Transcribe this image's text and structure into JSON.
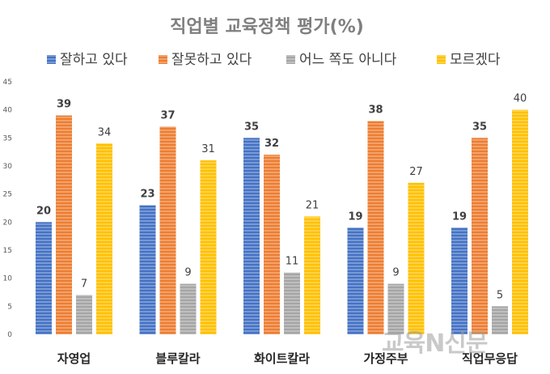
{
  "chart_data": {
    "type": "bar",
    "title": "직업별 교육정책 평가(%)",
    "categories": [
      "자영업",
      "블루칼라",
      "화이트칼라",
      "가정주부",
      "직업무응답"
    ],
    "series": [
      {
        "name": "잘하고 있다",
        "color": "#4472c4",
        "values": [
          20,
          23,
          35,
          19,
          19
        ]
      },
      {
        "name": "잘못하고 있다",
        "color": "#ed7d31",
        "values": [
          39,
          37,
          32,
          38,
          35
        ]
      },
      {
        "name": "어느 쪽도 아니다",
        "color": "#a5a5a5",
        "values": [
          7,
          9,
          11,
          9,
          5
        ]
      },
      {
        "name": "모르겠다",
        "color": "#ffc000",
        "values": [
          34,
          31,
          21,
          27,
          40
        ]
      }
    ],
    "highlight_label_color": "#c00000",
    "ylim": [
      0,
      45
    ],
    "yticks": [
      0,
      5,
      10,
      15,
      20,
      25,
      30,
      35,
      40,
      45
    ],
    "legend_position": "top",
    "grid": false
  },
  "watermark": "교육N신문"
}
